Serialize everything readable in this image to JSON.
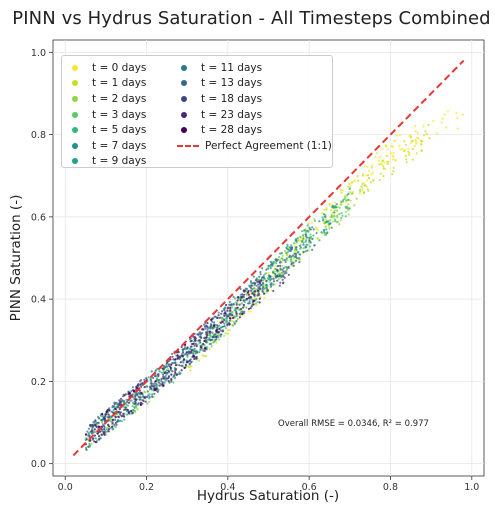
{
  "chart_data": {
    "type": "scatter",
    "title": "PINN vs Hydrus Saturation - All Timesteps Combined",
    "xlabel": "Hydrus Saturation (-)",
    "ylabel": "PINN Saturation (-)",
    "xlim": [
      -0.03,
      1.03
    ],
    "ylim": [
      -0.03,
      1.03
    ],
    "xticks": [
      "0.0",
      "0.2",
      "0.4",
      "0.6",
      "0.8",
      "1.0"
    ],
    "yticks": [
      "0.0",
      "0.2",
      "0.4",
      "0.6",
      "0.8",
      "1.0"
    ],
    "grid": true,
    "legend_position": "top-left",
    "series": [
      {
        "name": "t = 0 days",
        "color": "#fde725",
        "x_range": [
          0.4,
          0.98
        ],
        "trend": [
          [
            0.4,
            0.33
          ],
          [
            0.6,
            0.55
          ],
          [
            0.8,
            0.76
          ],
          [
            0.98,
            0.85
          ]
        ]
      },
      {
        "name": "t = 1 days",
        "color": "#c8e020",
        "x_range": [
          0.3,
          0.9
        ],
        "trend": [
          [
            0.3,
            0.24
          ],
          [
            0.5,
            0.45
          ],
          [
            0.7,
            0.66
          ],
          [
            0.9,
            0.8
          ]
        ]
      },
      {
        "name": "t = 2 days",
        "color": "#90d743",
        "x_range": [
          0.05,
          0.75
        ],
        "trend": [
          [
            0.05,
            0.06
          ],
          [
            0.3,
            0.25
          ],
          [
            0.55,
            0.5
          ],
          [
            0.75,
            0.68
          ]
        ]
      },
      {
        "name": "t = 3 days",
        "color": "#5ec962",
        "x_range": [
          0.05,
          0.72
        ],
        "trend": [
          [
            0.05,
            0.06
          ],
          [
            0.3,
            0.25
          ],
          [
            0.55,
            0.5
          ],
          [
            0.72,
            0.66
          ]
        ]
      },
      {
        "name": "t = 5 days",
        "color": "#35b779",
        "x_range": [
          0.05,
          0.7
        ],
        "trend": [
          [
            0.05,
            0.06
          ],
          [
            0.3,
            0.26
          ],
          [
            0.55,
            0.51
          ],
          [
            0.7,
            0.64
          ]
        ]
      },
      {
        "name": "t = 7 days",
        "color": "#21918c",
        "x_range": [
          0.05,
          0.68
        ],
        "trend": [
          [
            0.05,
            0.06
          ],
          [
            0.3,
            0.26
          ],
          [
            0.55,
            0.5
          ],
          [
            0.68,
            0.62
          ]
        ]
      },
      {
        "name": "t = 9 days",
        "color": "#20a486",
        "x_range": [
          0.05,
          0.65
        ],
        "trend": [
          [
            0.05,
            0.06
          ],
          [
            0.3,
            0.26
          ],
          [
            0.5,
            0.46
          ],
          [
            0.65,
            0.59
          ]
        ]
      },
      {
        "name": "t = 11 days",
        "color": "#2a788e",
        "x_range": [
          0.05,
          0.62
        ],
        "trend": [
          [
            0.05,
            0.06
          ],
          [
            0.3,
            0.27
          ],
          [
            0.5,
            0.46
          ],
          [
            0.62,
            0.56
          ]
        ]
      },
      {
        "name": "t = 13 days",
        "color": "#31688e",
        "x_range": [
          0.05,
          0.58
        ],
        "trend": [
          [
            0.05,
            0.06
          ],
          [
            0.3,
            0.27
          ],
          [
            0.45,
            0.41
          ],
          [
            0.58,
            0.52
          ]
        ]
      },
      {
        "name": "t = 18 days",
        "color": "#414487",
        "x_range": [
          0.05,
          0.55
        ],
        "trend": [
          [
            0.05,
            0.06
          ],
          [
            0.25,
            0.22
          ],
          [
            0.45,
            0.4
          ],
          [
            0.55,
            0.48
          ]
        ]
      },
      {
        "name": "t = 23 days",
        "color": "#482878",
        "x_range": [
          0.05,
          0.5
        ],
        "trend": [
          [
            0.05,
            0.06
          ],
          [
            0.25,
            0.22
          ],
          [
            0.4,
            0.36
          ],
          [
            0.5,
            0.44
          ]
        ]
      },
      {
        "name": "t = 28 days",
        "color": "#440154",
        "x_range": [
          0.05,
          0.48
        ],
        "trend": [
          [
            0.05,
            0.06
          ],
          [
            0.25,
            0.22
          ],
          [
            0.4,
            0.36
          ],
          [
            0.48,
            0.42
          ]
        ]
      }
    ],
    "reference_line": {
      "name": "Perfect Agreement (1:1)",
      "color": "#e53935",
      "x": [
        0.02,
        0.98
      ],
      "y": [
        0.02,
        0.98
      ]
    },
    "annotation": "Overall RMSE = 0.0346, R² = 0.977"
  }
}
